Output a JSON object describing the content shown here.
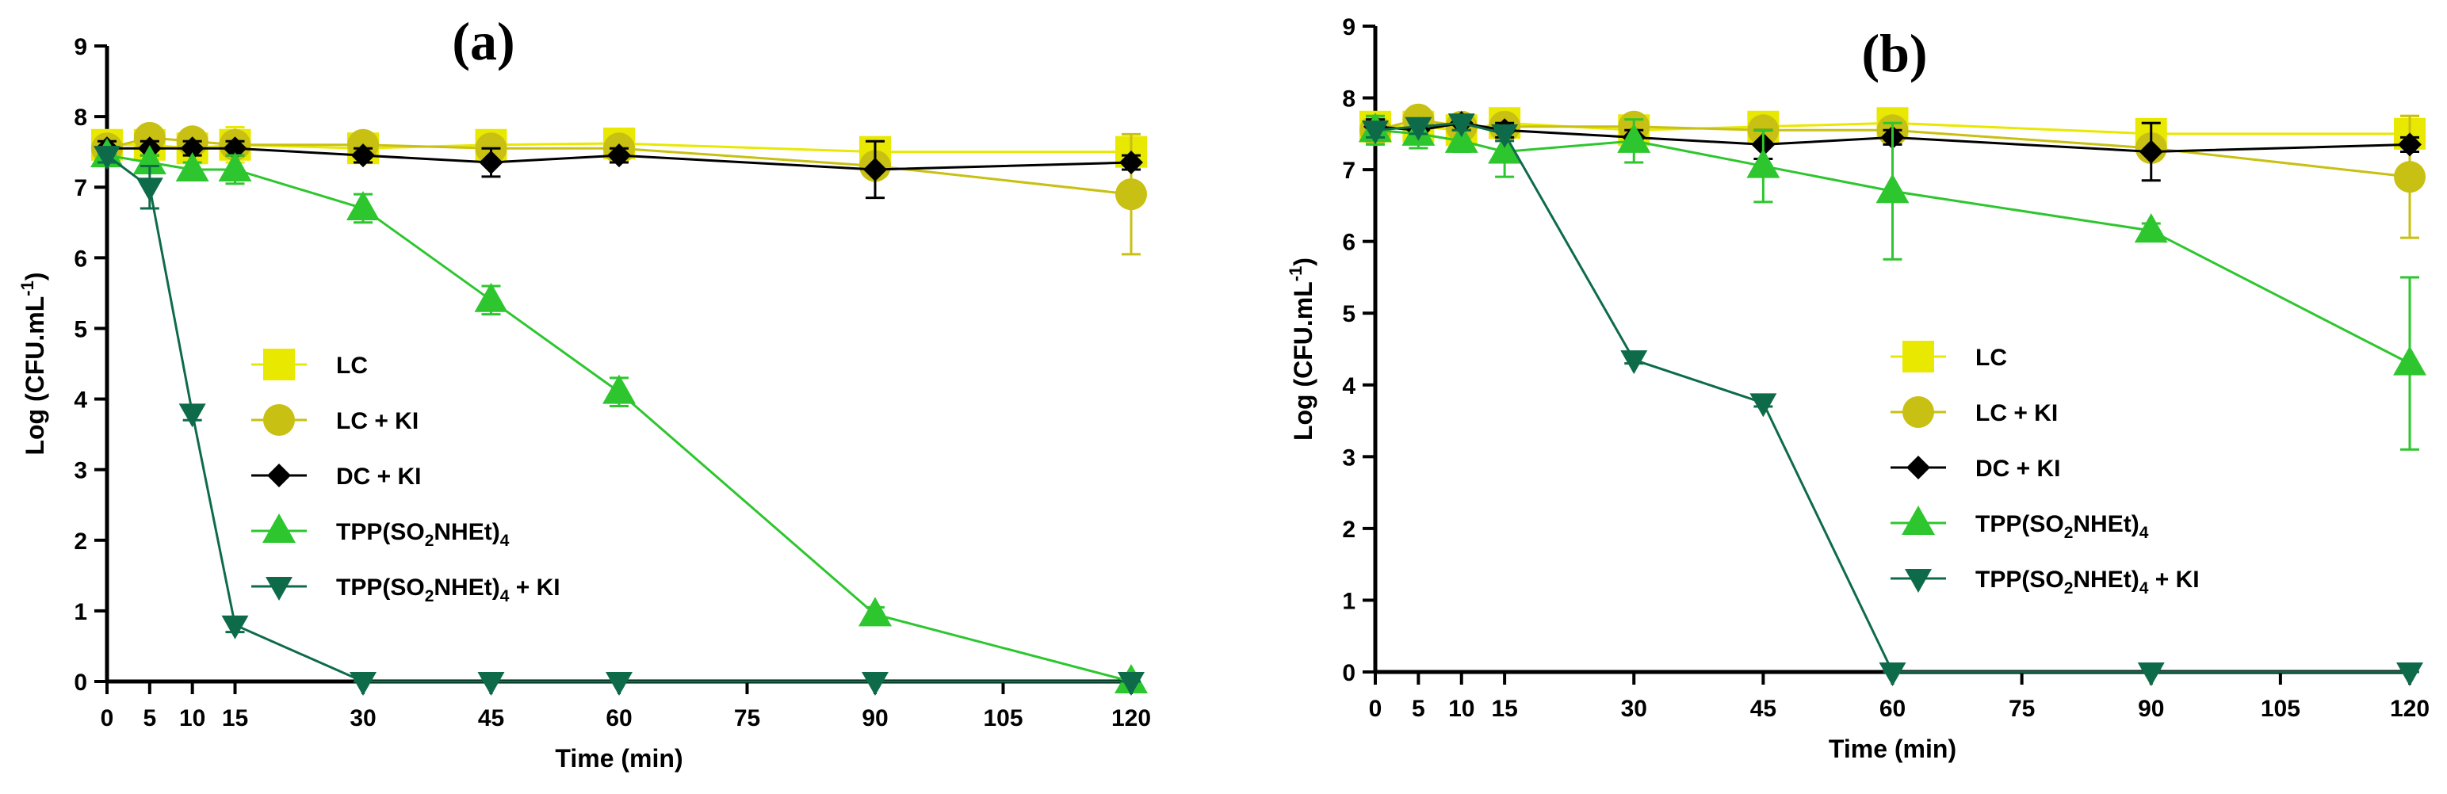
{
  "chart_data": [
    {
      "panel_label": "(a)",
      "type": "line",
      "xlabel": "Time (min)",
      "ylabel": "Log (CFU.mL",
      "ylabel_sup": "-1",
      "ylabel_close": ")",
      "xlim": [
        0,
        120
      ],
      "ylim": [
        0,
        9
      ],
      "xticks": [
        0,
        5,
        10,
        15,
        30,
        45,
        60,
        75,
        90,
        105,
        120
      ],
      "yticks": [
        0,
        1,
        2,
        3,
        4,
        5,
        6,
        7,
        8,
        9
      ],
      "legend_position": "center",
      "series": [
        {
          "name": "LC",
          "color": "#e8e800",
          "marker": "square",
          "x": [
            0,
            5,
            10,
            15,
            30,
            45,
            60,
            90,
            120
          ],
          "y": [
            7.6,
            7.6,
            7.55,
            7.6,
            7.55,
            7.6,
            7.62,
            7.5,
            7.5
          ],
          "err": [
            0.1,
            0.1,
            0.1,
            0.25,
            0.12,
            0.2,
            0.15,
            0.1,
            0.2
          ]
        },
        {
          "name": "LC + KI",
          "color": "#c8c012",
          "marker": "circle",
          "x": [
            0,
            5,
            10,
            15,
            30,
            45,
            60,
            90,
            120
          ],
          "y": [
            7.55,
            7.7,
            7.65,
            7.6,
            7.6,
            7.55,
            7.55,
            7.3,
            6.9
          ],
          "err": [
            0.1,
            0.1,
            0.1,
            0.1,
            0.1,
            0.1,
            0.1,
            0.1,
            0.85
          ]
        },
        {
          "name": "DC + KI",
          "color": "#000000",
          "marker": "diamond",
          "x": [
            0,
            5,
            10,
            15,
            30,
            45,
            60,
            90,
            120
          ],
          "y": [
            7.55,
            7.55,
            7.55,
            7.55,
            7.45,
            7.35,
            7.45,
            7.25,
            7.35
          ],
          "err": [
            0.1,
            0.1,
            0.1,
            0.1,
            0.1,
            0.2,
            0.1,
            0.4,
            0.1
          ]
        },
        {
          "name": "TPP(SO2NHEt)4",
          "name_pre": "TPP(SO",
          "name_sub1": "2",
          "name_mid": "NHEt)",
          "name_sub2": "4",
          "name_post": "",
          "color": "#2ec62e",
          "marker": "triangle-up",
          "x": [
            0,
            5,
            10,
            15,
            30,
            45,
            60,
            90,
            120
          ],
          "y": [
            7.45,
            7.35,
            7.25,
            7.25,
            6.7,
            5.4,
            4.1,
            0.95,
            0.0
          ],
          "err": [
            0.1,
            0.1,
            0.1,
            0.2,
            0.2,
            0.2,
            0.2,
            0.1,
            0.05
          ]
        },
        {
          "name": "TPP(SO2NHEt)4 + KI",
          "name_pre": "TPP(SO",
          "name_sub1": "2",
          "name_mid": "NHEt)",
          "name_sub2": "4",
          "name_post": " + KI",
          "color": "#0e6b4a",
          "marker": "triangle-down",
          "x": [
            0,
            5,
            10,
            15,
            30,
            45,
            60,
            90,
            120
          ],
          "y": [
            7.45,
            7.0,
            3.8,
            0.8,
            0.0,
            0.0,
            0.0,
            0.0,
            0.0
          ],
          "err": [
            0.1,
            0.3,
            0.1,
            0.1,
            0.05,
            0.05,
            0.05,
            0.05,
            0.05
          ]
        }
      ]
    },
    {
      "panel_label": "(b)",
      "type": "line",
      "xlabel": "Time (min)",
      "ylabel": "Log (CFU.mL",
      "ylabel_sup": "-1",
      "ylabel_close": ")",
      "xlim": [
        0,
        120
      ],
      "ylim": [
        0,
        9
      ],
      "xticks": [
        0,
        5,
        10,
        15,
        30,
        45,
        60,
        75,
        90,
        105,
        120
      ],
      "yticks": [
        0,
        1,
        2,
        3,
        4,
        5,
        6,
        7,
        8,
        9
      ],
      "legend_position": "center-right",
      "series": [
        {
          "name": "LC",
          "color": "#e8e800",
          "marker": "square",
          "x": [
            0,
            5,
            10,
            15,
            30,
            45,
            60,
            90,
            120
          ],
          "y": [
            7.6,
            7.6,
            7.55,
            7.65,
            7.55,
            7.6,
            7.65,
            7.5,
            7.5
          ],
          "err": [
            0.2,
            0.1,
            0.1,
            0.2,
            0.1,
            0.2,
            0.15,
            0.1,
            0.25
          ]
        },
        {
          "name": "LC + KI",
          "color": "#c8c012",
          "marker": "circle",
          "x": [
            0,
            5,
            10,
            15,
            30,
            45,
            60,
            90,
            120
          ],
          "y": [
            7.55,
            7.7,
            7.6,
            7.6,
            7.6,
            7.55,
            7.55,
            7.3,
            6.9
          ],
          "err": [
            0.1,
            0.1,
            0.1,
            0.1,
            0.1,
            0.1,
            0.1,
            0.1,
            0.85
          ]
        },
        {
          "name": "DC + KI",
          "color": "#000000",
          "marker": "diamond",
          "x": [
            0,
            5,
            10,
            15,
            30,
            45,
            60,
            90,
            120
          ],
          "y": [
            7.6,
            7.55,
            7.65,
            7.55,
            7.45,
            7.35,
            7.45,
            7.25,
            7.35
          ],
          "err": [
            0.1,
            0.1,
            0.1,
            0.1,
            0.1,
            0.2,
            0.1,
            0.4,
            0.1
          ]
        },
        {
          "name": "TPP(SO2NHEt)4",
          "name_pre": "TPP(SO",
          "name_sub1": "2",
          "name_mid": "NHEt)",
          "name_sub2": "4",
          "name_post": "",
          "color": "#2ec62e",
          "marker": "triangle-up",
          "x": [
            0,
            5,
            10,
            15,
            30,
            45,
            60,
            90,
            120
          ],
          "y": [
            7.55,
            7.5,
            7.4,
            7.25,
            7.4,
            7.05,
            6.7,
            6.15,
            4.3
          ],
          "err": [
            0.2,
            0.2,
            0.15,
            0.35,
            0.3,
            0.5,
            0.95,
            0.1,
            1.2
          ]
        },
        {
          "name": "TPP(SO2NHEt)4 + KI",
          "name_pre": "TPP(SO",
          "name_sub1": "2",
          "name_mid": "NHEt)",
          "name_sub2": "4",
          "name_post": " + KI",
          "color": "#0e6b4a",
          "marker": "triangle-down",
          "x": [
            0,
            5,
            10,
            15,
            30,
            45,
            60,
            90,
            120
          ],
          "y": [
            7.55,
            7.6,
            7.65,
            7.5,
            4.35,
            3.75,
            0.0,
            0.0,
            0.0
          ],
          "err": [
            0.1,
            0.1,
            0.1,
            0.1,
            0.05,
            0.05,
            0.05,
            0.05,
            0.05
          ]
        }
      ]
    }
  ]
}
